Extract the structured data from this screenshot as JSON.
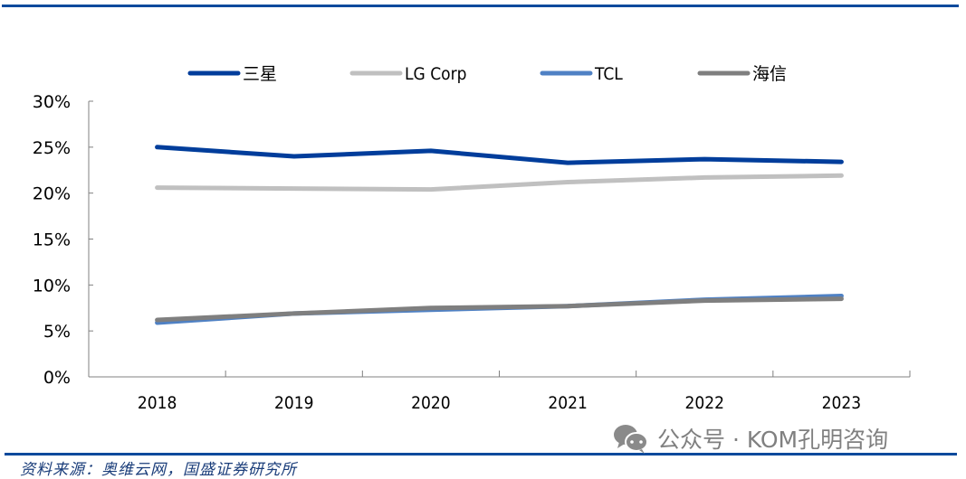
{
  "chart_data": {
    "type": "line",
    "title": "",
    "xlabel": "",
    "ylabel": "",
    "categories": [
      "2018",
      "2019",
      "2020",
      "2021",
      "2022",
      "2023"
    ],
    "ylim": [
      0,
      30
    ],
    "y_ticks": [
      0,
      5,
      10,
      15,
      20,
      25,
      30
    ],
    "y_tick_labels": [
      "0%",
      "5%",
      "10%",
      "15%",
      "20%",
      "25%",
      "30%"
    ],
    "grid": false,
    "legend_position": "top",
    "series": [
      {
        "name": "三星",
        "color": "#003d9b",
        "values": [
          25.0,
          24.0,
          24.6,
          23.3,
          23.7,
          23.4
        ]
      },
      {
        "name": "LG Corp",
        "color": "#c0c0c0",
        "values": [
          20.6,
          20.5,
          20.4,
          21.2,
          21.7,
          21.9
        ]
      },
      {
        "name": "TCL",
        "color": "#4f81c4",
        "values": [
          5.9,
          6.9,
          7.3,
          7.7,
          8.4,
          8.8
        ]
      },
      {
        "name": "海信",
        "color": "#7f7f7f",
        "values": [
          6.2,
          6.9,
          7.5,
          7.7,
          8.3,
          8.5
        ]
      }
    ]
  },
  "footer": {
    "source": "资料来源：奥维云网，国盛证券研究所",
    "watermark": "公众号 · KOM孔明咨询",
    "watermark_icon": "wechat-icon"
  },
  "colors": {
    "rule": "#0b4a9c",
    "axis": "#808080",
    "text": "#000000"
  }
}
